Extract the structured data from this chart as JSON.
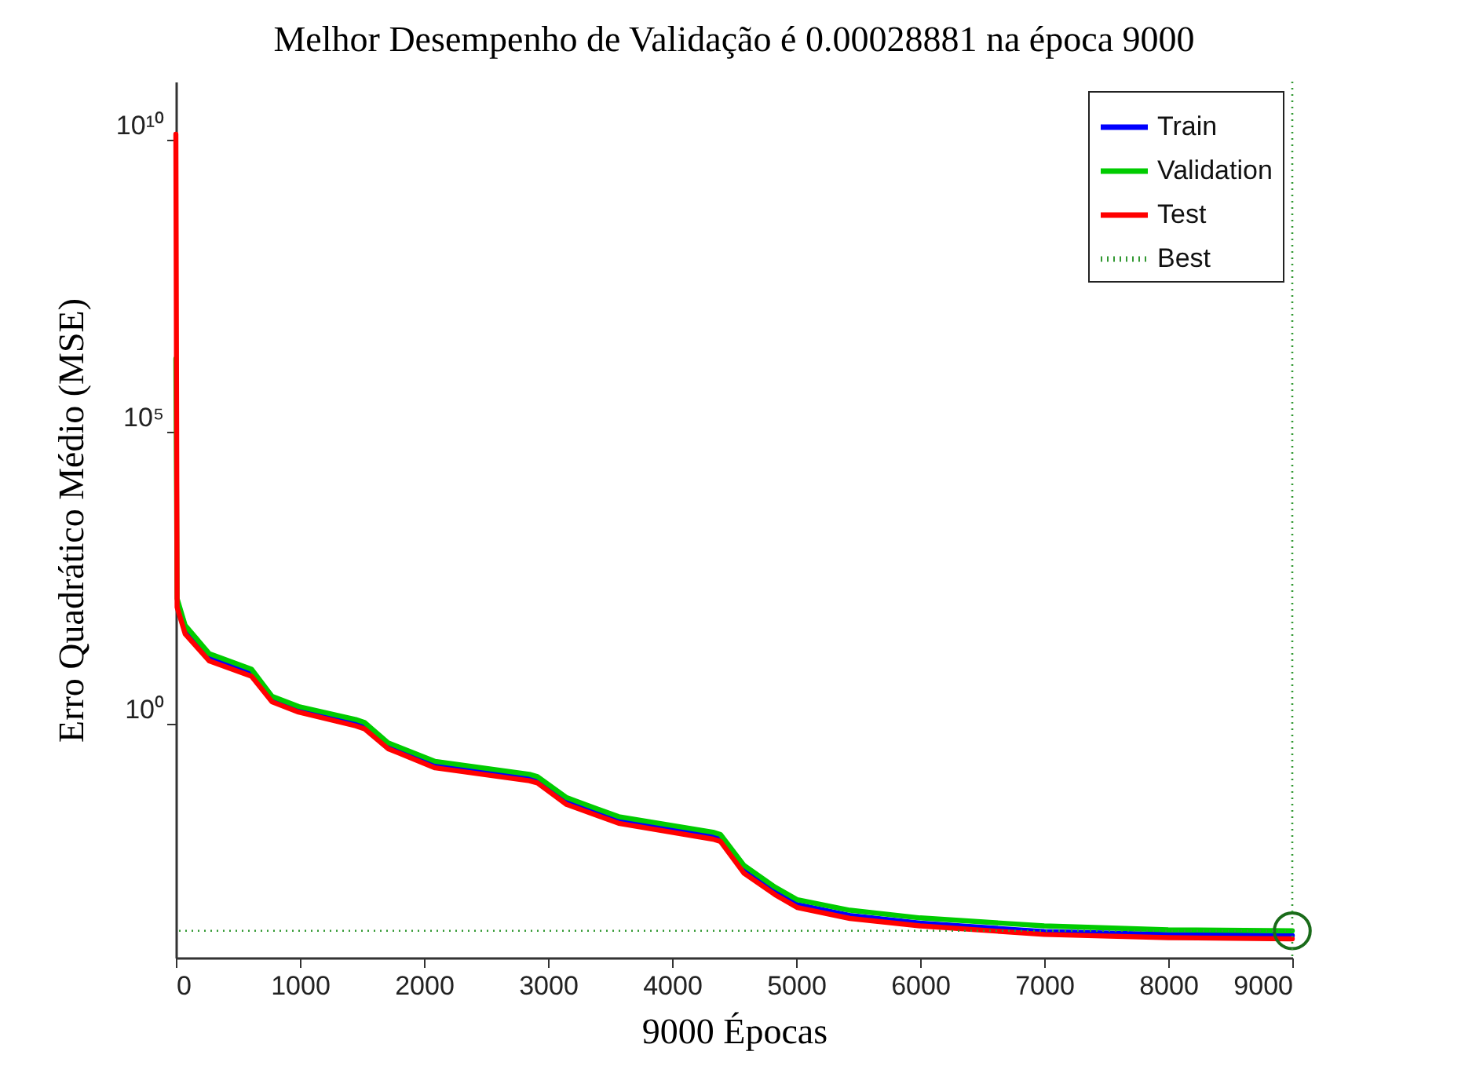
{
  "chart_data": {
    "type": "line",
    "title": "Melhor Desempenho de Validação é 0.00028881 na época 9000",
    "xlabel": "9000 Épocas",
    "ylabel": "Erro Quadrático Médio (MSE)",
    "log": "y",
    "legend": "top right",
    "xlim": [
      0,
      9000
    ],
    "xticks": [
      0,
      1000,
      2000,
      3000,
      4000,
      5000,
      6000,
      7000,
      8000,
      9000
    ],
    "ylim": [
      0.0001,
      100000000000
    ],
    "yticks": [
      {
        "value": 1,
        "label": "10⁰"
      },
      {
        "value": 100000,
        "label": "10⁵"
      },
      {
        "value": 10000000000,
        "label": "10¹⁰"
      }
    ],
    "x": [
      0,
      10,
      75,
      270,
      610,
      775,
      990,
      1450,
      1520,
      1710,
      2090,
      2850,
      2915,
      3150,
      3570,
      4330,
      4390,
      4580,
      4830,
      5011,
      5434,
      6000,
      7000,
      8000,
      9000
    ],
    "series": [
      {
        "name": "Train",
        "color": "#0000ff",
        "values": [
          null,
          null,
          39,
          13.4,
          7.4,
          2.7,
          1.8,
          1.04,
          0.93,
          0.43,
          0.2,
          0.12,
          0.11,
          0.047,
          0.022,
          0.012,
          0.011,
          0.0031,
          0.00135,
          0.00081,
          0.00053,
          0.00039,
          0.00028,
          0.00025,
          0.00024
        ]
      },
      {
        "name": "Validation",
        "color": "#00cc00",
        "values": [
          1800000,
          141,
          49,
          16,
          8.7,
          3.0,
          2.0,
          1.2,
          1.07,
          0.48,
          0.23,
          0.138,
          0.126,
          0.055,
          0.026,
          0.0141,
          0.0129,
          0.0038,
          0.00162,
          0.00098,
          0.00065,
          0.00048,
          0.00035,
          0.0003,
          0.00028881
        ]
      },
      {
        "name": "Test",
        "color": "#ff0000",
        "values": [
          12600000000,
          100,
          35,
          12,
          6.6,
          2.4,
          1.6,
          0.93,
          0.83,
          0.38,
          0.178,
          0.107,
          0.098,
          0.042,
          0.02,
          0.0107,
          0.0098,
          0.0028,
          0.0012,
          0.00072,
          0.00047,
          0.00035,
          0.00025,
          0.00022,
          0.00021
        ]
      },
      {
        "type": "scatter",
        "marker": "circle",
        "color": "#1a6b1a",
        "x": [
          9000
        ],
        "values": [
          0.00028881
        ]
      }
    ],
    "ref_lines": [
      {
        "axis": "y",
        "value": 0.00028881,
        "label": "Best",
        "color": "#339933",
        "line_style": "dotted"
      },
      {
        "axis": "x",
        "value": 9000,
        "color": "#339933",
        "line_style": "dotted"
      }
    ]
  }
}
